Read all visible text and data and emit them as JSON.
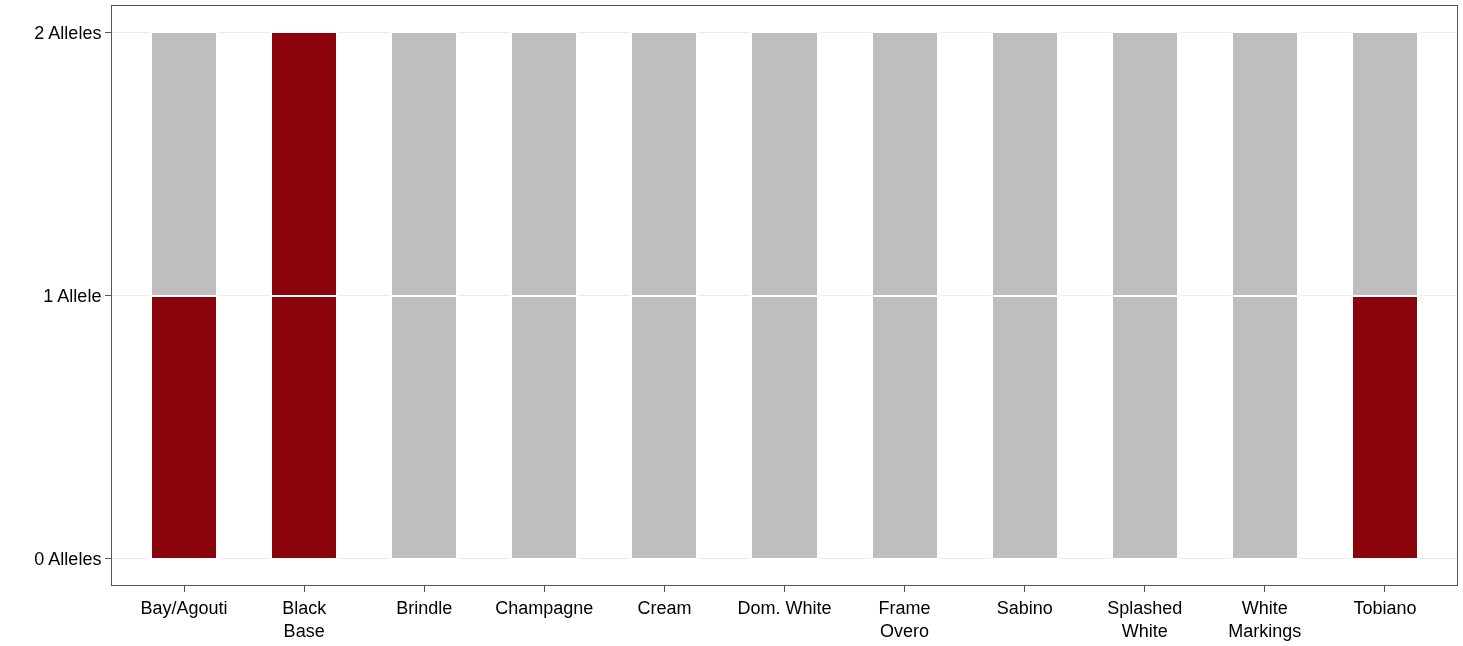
{
  "chart_data": {
    "type": "bar",
    "stacked": true,
    "categories": [
      "Bay/Agouti",
      "Black\nBase",
      "Brindle",
      "Champagne",
      "Cream",
      "Dom. White",
      "Frame\nOvero",
      "Sabino",
      "Splashed\nWhite",
      "White\nMarkings",
      "Tobiano"
    ],
    "series": [
      {
        "colors": [
          "#8b030b",
          "#8b030b",
          "#bebebe",
          "#bebebe",
          "#bebebe",
          "#bebebe",
          "#bebebe",
          "#bebebe",
          "#bebebe",
          "#bebebe",
          "#8b030b"
        ],
        "values": [
          1,
          1,
          1,
          1,
          1,
          1,
          1,
          1,
          1,
          1,
          1
        ]
      },
      {
        "colors": [
          "#bebebe",
          "#8b030b",
          "#bebebe",
          "#bebebe",
          "#bebebe",
          "#bebebe",
          "#bebebe",
          "#bebebe",
          "#bebebe",
          "#bebebe",
          "#bebebe"
        ],
        "values": [
          1,
          1,
          1,
          1,
          1,
          1,
          1,
          1,
          1,
          1,
          1
        ]
      }
    ],
    "ylim": [
      -0.1,
      2.1
    ],
    "yticks": [
      {
        "value": 0,
        "label": "0 Alleles"
      },
      {
        "value": 1,
        "label": "1 Allele"
      },
      {
        "value": 2,
        "label": "2 Alleles"
      }
    ],
    "grid": true
  }
}
